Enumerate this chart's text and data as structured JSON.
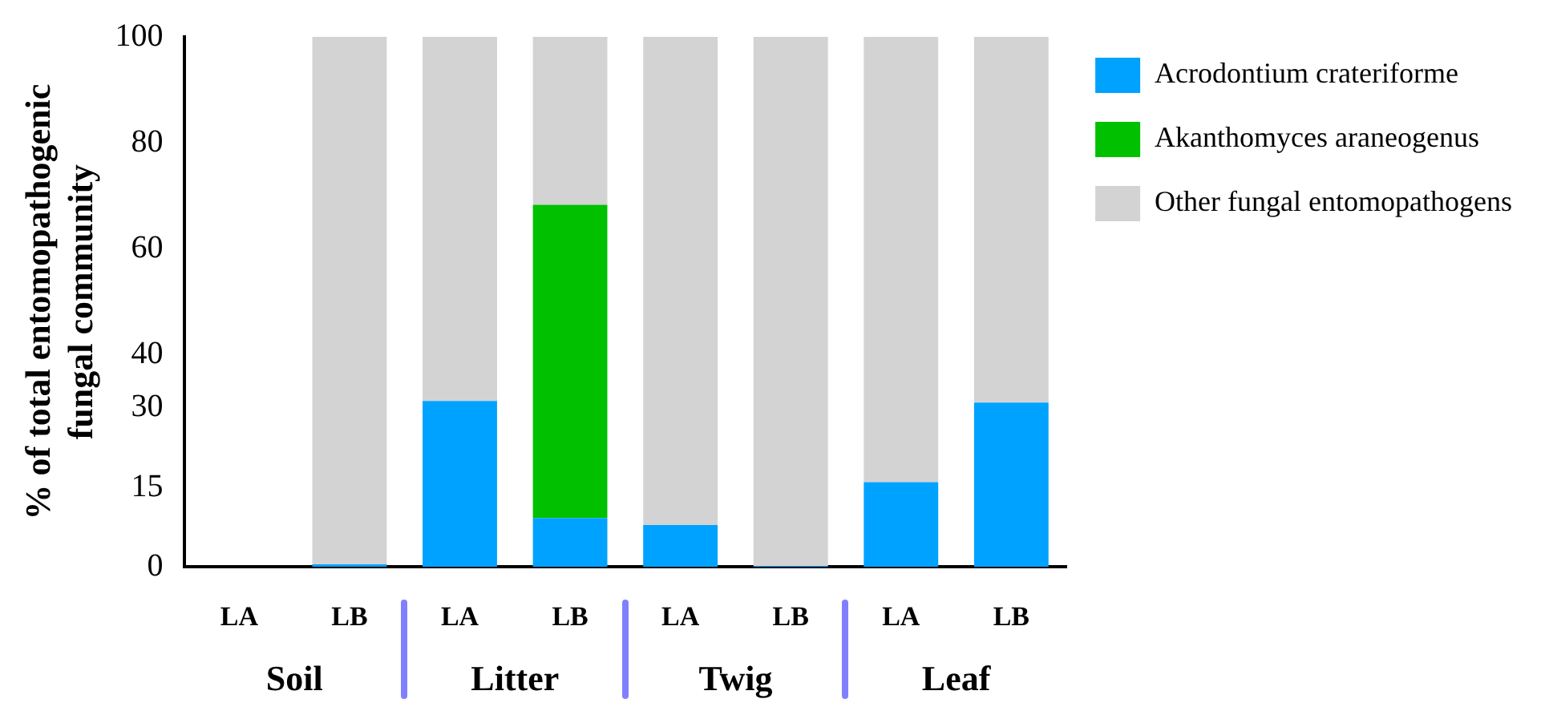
{
  "chart_data": {
    "type": "bar",
    "stacked": true,
    "ylabel": "% of total entomopathogenic fungal community",
    "categories": [
      "LA",
      "LB",
      "LA",
      "LB",
      "LA",
      "LB",
      "LA",
      "LB"
    ],
    "series": [
      {
        "name": "Acrodontium crateriforme",
        "color": "#00a2ff",
        "values": [
          null,
          0.5,
          31.3,
          9.2,
          7.9,
          0.2,
          16,
          31
        ]
      },
      {
        "name": "Akanthomyces araneogenus",
        "color": "#00c000",
        "values": [
          null,
          0,
          0,
          59.1,
          0,
          0,
          0,
          0
        ]
      },
      {
        "name": "Other fungal entomopathogens",
        "color": "#d3d3d3",
        "values": [
          null,
          99.5,
          68.7,
          31.7,
          92.1,
          99.8,
          84,
          69
        ]
      }
    ],
    "annotations": [
      "Soil",
      "Litter",
      "Twig",
      "Leaf"
    ],
    "ylim": [
      0,
      100
    ],
    "yticks": [
      0,
      15,
      30,
      40,
      60,
      80,
      100
    ],
    "grid": false,
    "legend": "top right"
  }
}
